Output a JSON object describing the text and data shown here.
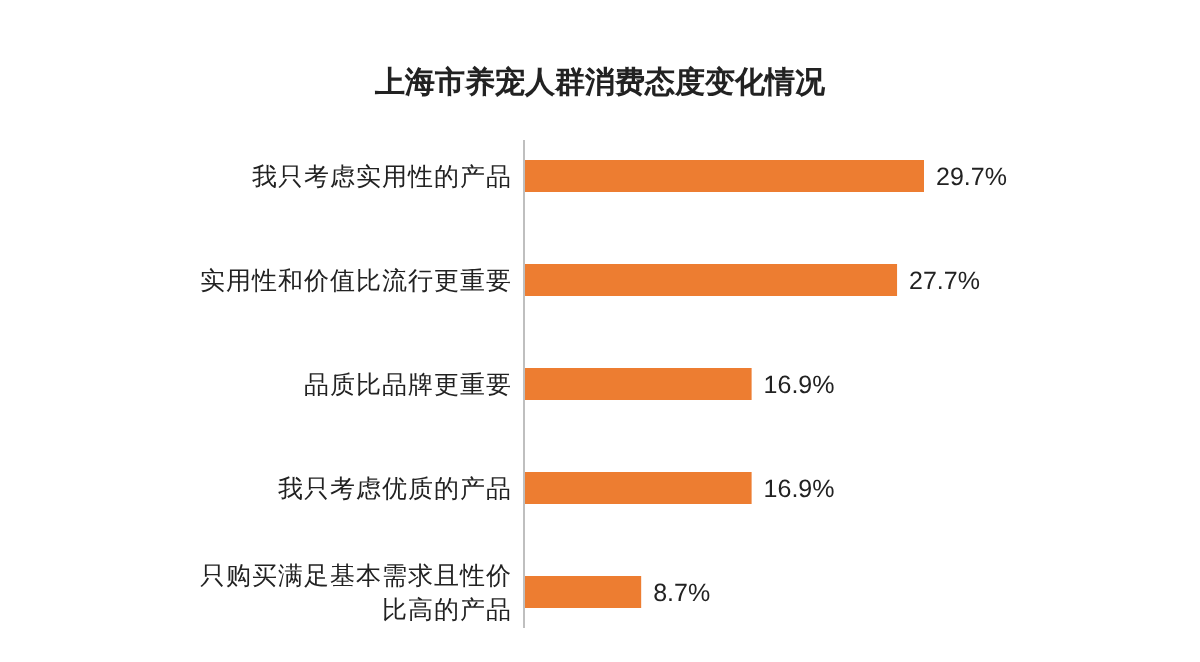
{
  "chart_data": {
    "type": "bar",
    "orientation": "horizontal",
    "title": "上海市养宠人群消费态度变化情况",
    "categories": [
      "我只考虑实用性的产品",
      "实用性和价值比流行更重要",
      "品质比品牌更重要",
      "我只考虑优质的产品",
      "只购买满足基本需求且性价比高的产品"
    ],
    "values": [
      29.7,
      27.7,
      16.9,
      16.9,
      8.7
    ],
    "value_labels": [
      "29.7%",
      "27.7%",
      "16.9%",
      "16.9%",
      "8.7%"
    ],
    "color": "#ed7d31"
  }
}
